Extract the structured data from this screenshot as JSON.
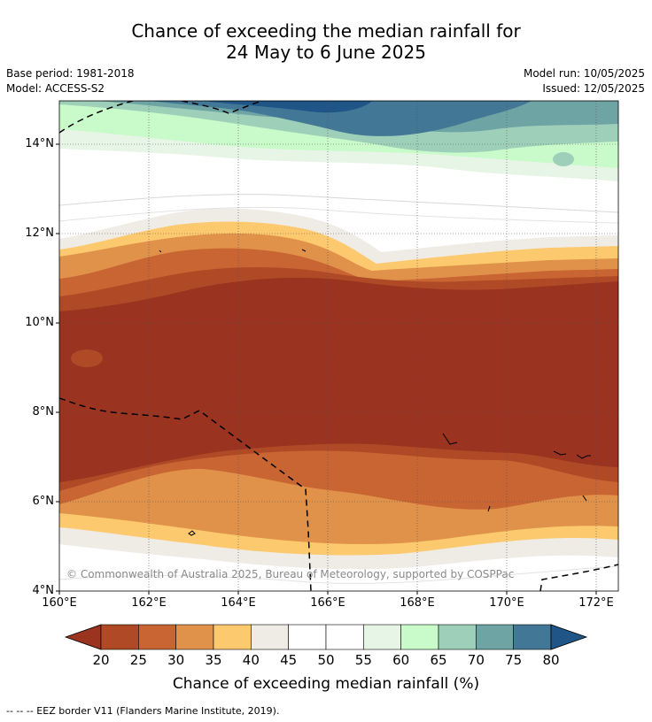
{
  "header": {
    "title_line1": "Chance of exceeding the median rainfall for",
    "title_line2": "24 May to 6 June 2025",
    "base_period": "Base period: 1981-2018",
    "model": "Model: ACCESS-S2",
    "model_run": "Model run: 10/05/2025",
    "issued": "Issued: 12/05/2025"
  },
  "map": {
    "copyright": "© Commonwealth of Australia 2025, Bureau of Meteorology, supported by COSPPac",
    "lat_ticks": [
      "14°N",
      "12°N",
      "10°N",
      "8°N",
      "6°N",
      "4°N"
    ],
    "lon_ticks": [
      "160°E",
      "162°E",
      "164°E",
      "166°E",
      "168°E",
      "170°E",
      "172°E"
    ],
    "lon_range": [
      160,
      172.5
    ],
    "lat_range": [
      4,
      15
    ],
    "border_style": "dashed",
    "grid": "dotted"
  },
  "colorbar": {
    "ticks": [
      "20",
      "25",
      "30",
      "35",
      "40",
      "45",
      "50",
      "55",
      "60",
      "65",
      "70",
      "75",
      "80"
    ],
    "label": "Chance of exceeding median rainfall (%)",
    "colors": [
      "#9a3320",
      "#b04a26",
      "#c96433",
      "#e0924a",
      "#fdc96e",
      "#efebe5",
      "#ffffff",
      "#ffffff",
      "#e7f5e6",
      "#c9fac9",
      "#9ed0b9",
      "#6fa4a5",
      "#427896",
      "#1f5687"
    ]
  },
  "footer": {
    "legend": "--  --  -- EEZ border V11 (Flanders Marine Institute, 2019)."
  }
}
